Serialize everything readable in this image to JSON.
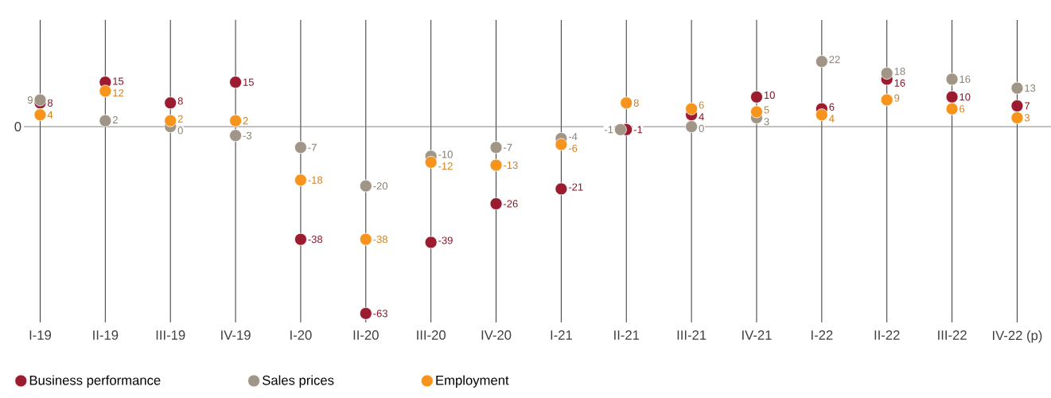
{
  "chart_data": {
    "type": "scatter",
    "categories": [
      "I-19",
      "II-19",
      "III-19",
      "IV-19",
      "I-20",
      "II-20",
      "III-20",
      "IV-20",
      "I-21",
      "II-21",
      "III-21",
      "IV-21",
      "I-22",
      "II-22",
      "III-22",
      "IV-22 (p)"
    ],
    "series": [
      {
        "name": "Business performance",
        "color": "#9b1b30",
        "values": [
          8,
          15,
          8,
          15,
          -38,
          -63,
          -39,
          -26,
          -21,
          -1,
          4,
          10,
          6,
          16,
          10,
          7
        ]
      },
      {
        "name": "Sales prices",
        "color": "#a09586",
        "values": [
          9,
          2,
          0,
          -3,
          -7,
          -20,
          -10,
          -7,
          -4,
          -1,
          0,
          3,
          22,
          18,
          16,
          13
        ]
      },
      {
        "name": "Employment",
        "color": "#f7941d",
        "values": [
          4,
          12,
          2,
          2,
          -18,
          -38,
          -12,
          -13,
          -6,
          8,
          6,
          5,
          4,
          9,
          6,
          3
        ]
      }
    ],
    "ylim": [
      -66,
      36
    ],
    "ref_lines": [
      {
        "axis": "y",
        "value": 0,
        "label": "0"
      }
    ],
    "grid": "x",
    "legend": "bottom",
    "marker": "circle",
    "data_labels": true
  }
}
